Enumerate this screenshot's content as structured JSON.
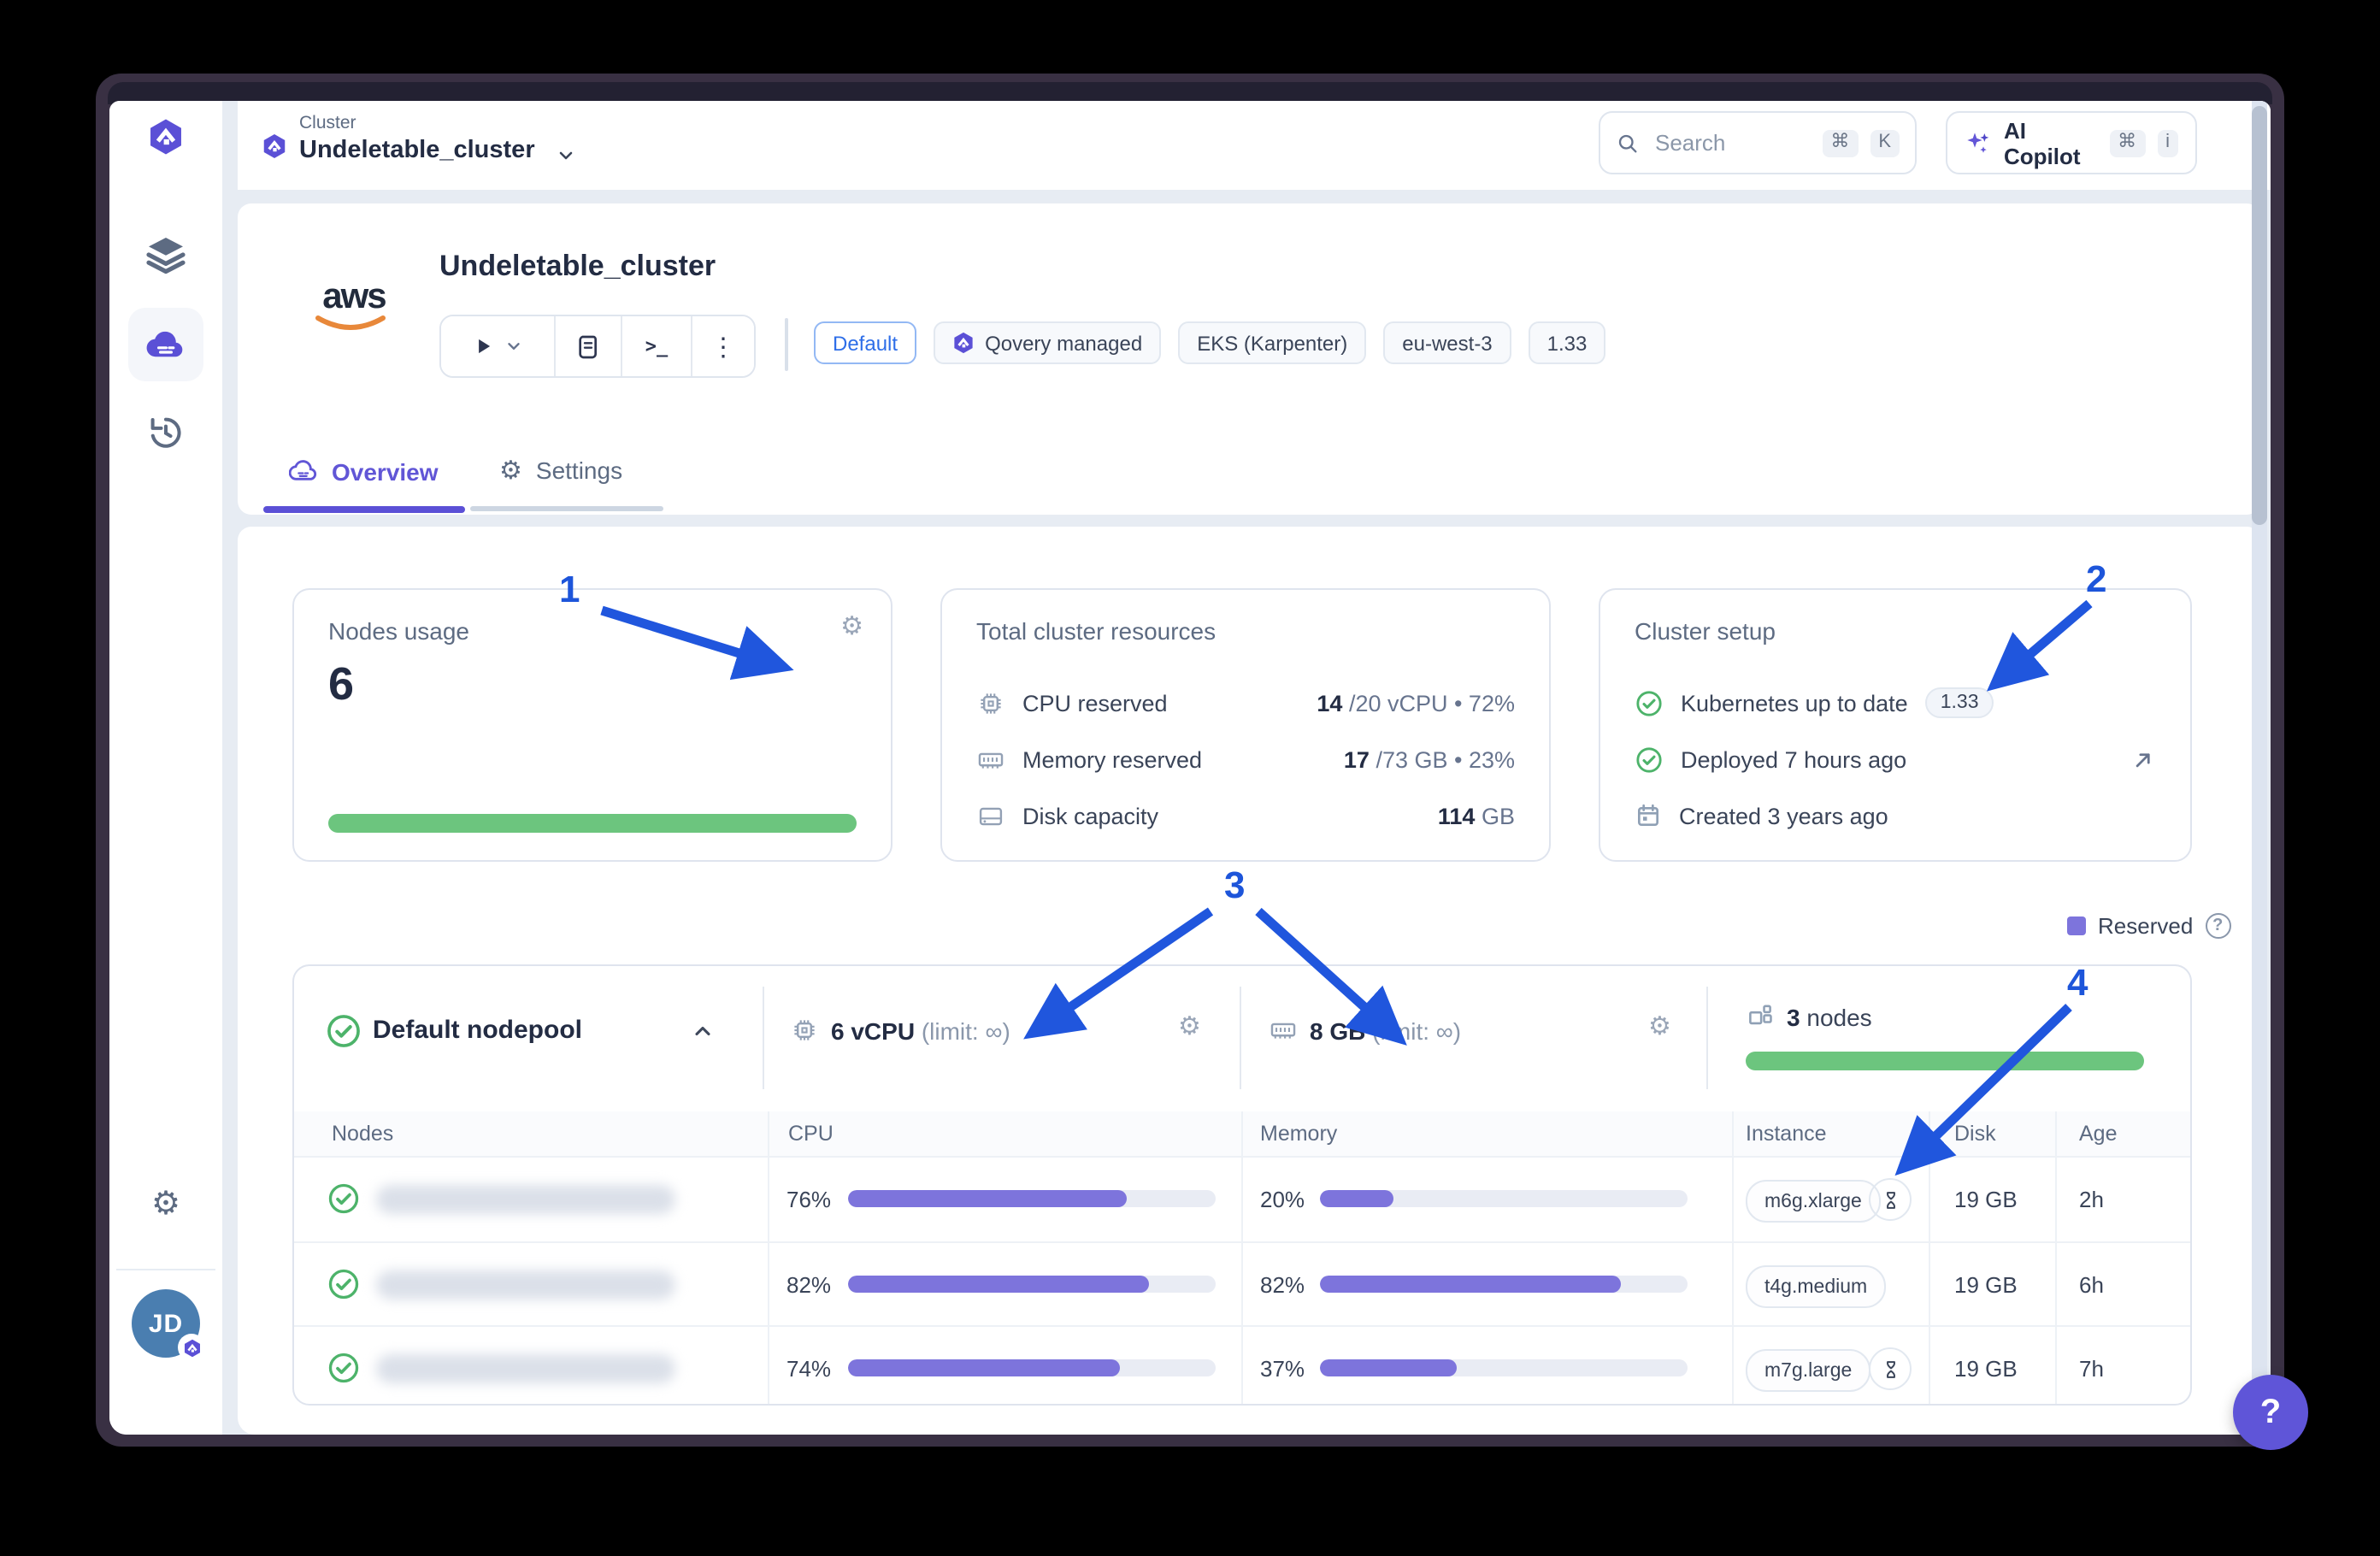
{
  "colors": {
    "accent": "#5b50d6",
    "arrow_blue": "#2056dd",
    "green": "#6cc57e",
    "bar_purple": "#7d74dc"
  },
  "sidebar": {
    "avatar_initials": "JD"
  },
  "topbar": {
    "breadcrumb": "Cluster",
    "cluster_name": "Undeletable_cluster",
    "search_placeholder": "Search",
    "key_cmd": "⌘",
    "key_k": "K",
    "copilot_label": "AI Copilot",
    "key_i": "i"
  },
  "cluster_header": {
    "provider": "aws",
    "title": "Undeletable_cluster",
    "terminal_glyph": ">_",
    "kebab_glyph": "⋮",
    "badges": {
      "default": "Default",
      "managed": "Qovery managed",
      "eks": "EKS (Karpenter)",
      "region": "eu-west-3",
      "version": "1.33"
    },
    "tabs": {
      "overview": "Overview",
      "settings": "Settings"
    }
  },
  "cards": {
    "nodes_usage": {
      "title": "Nodes usage",
      "value": "6"
    },
    "resources": {
      "title": "Total cluster resources",
      "cpu_label": "CPU reserved",
      "cpu_value": "14",
      "cpu_rest": "/20 vCPU • 72%",
      "mem_label": "Memory reserved",
      "mem_value": "17",
      "mem_rest": "/73 GB • 23%",
      "disk_label": "Disk capacity",
      "disk_value": "114",
      "disk_rest": "GB"
    },
    "setup": {
      "title": "Cluster setup",
      "k8s_label": "Kubernetes up to date",
      "k8s_version": "1.33",
      "deployed_label": "Deployed 7 hours ago",
      "created_label": "Created 3 years ago"
    }
  },
  "legend": {
    "label": "Reserved",
    "help_glyph": "?"
  },
  "nodepool": {
    "name": "Default nodepool",
    "cpu_value": "6 vCPU",
    "cpu_limit": "(limit: ∞)",
    "mem_value": "8 GB",
    "mem_limit": "(limit: ∞)",
    "nodes_value": "3",
    "nodes_suffix": "nodes"
  },
  "table": {
    "headers": {
      "nodes": "Nodes",
      "cpu": "CPU",
      "memory": "Memory",
      "instance": "Instance",
      "disk": "Disk",
      "age": "Age"
    },
    "rows": [
      {
        "cpu": "76%",
        "memory": "20%",
        "instance": "m6g.xlarge",
        "spot": true,
        "disk": "19 GB",
        "age": "2h"
      },
      {
        "cpu": "82%",
        "memory": "82%",
        "instance": "t4g.medium",
        "spot": false,
        "disk": "19 GB",
        "age": "6h"
      },
      {
        "cpu": "74%",
        "memory": "37%",
        "instance": "m7g.large",
        "spot": true,
        "disk": "19 GB",
        "age": "7h"
      }
    ]
  },
  "annotations": {
    "a1": "1",
    "a2": "2",
    "a3": "3",
    "a4": "4"
  },
  "help_button": {
    "label": "?"
  }
}
